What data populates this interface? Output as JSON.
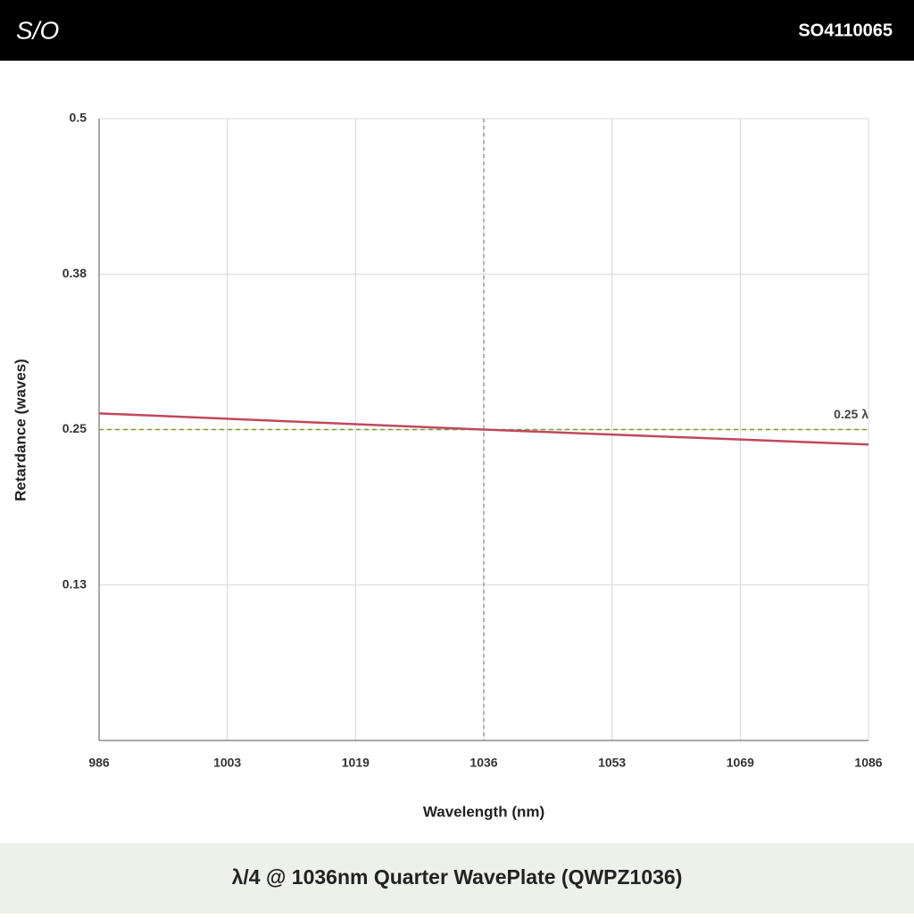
{
  "header": {
    "logo": "S/O",
    "code": "SO4110065"
  },
  "chart_data": {
    "type": "line",
    "x_label": "Wavelength (nm)",
    "y_label": "Retardance (waves)",
    "x": [
      986,
      1036,
      1086
    ],
    "series": [
      {
        "name": "Retardance",
        "color": "#c0485e",
        "values": [
          0.263,
          0.25,
          0.238
        ]
      }
    ],
    "xlim": [
      986,
      1086
    ],
    "xticks": [
      986,
      {
        "value": 1002.667,
        "label": "1003"
      },
      {
        "value": 1019.333,
        "label": "1019"
      },
      1036,
      {
        "value": 1052.667,
        "label": "1053"
      },
      {
        "value": 1069.333,
        "label": "1069"
      },
      1086
    ],
    "ylim": [
      0,
      0.5
    ],
    "yticks": [
      {
        "value": 0.125,
        "label": "0.13"
      },
      0.25,
      {
        "value": 0.375,
        "label": "0.38"
      },
      0.5
    ],
    "grid": true,
    "hline": {
      "value": 0.25,
      "label": "0.25 λ",
      "color": "#7a9a2a"
    },
    "vline": {
      "value": 1036,
      "color": "#666666"
    }
  },
  "footer": {
    "title": "λ/4 @ 1036nm Quarter WavePlate (QWPZ1036)"
  }
}
